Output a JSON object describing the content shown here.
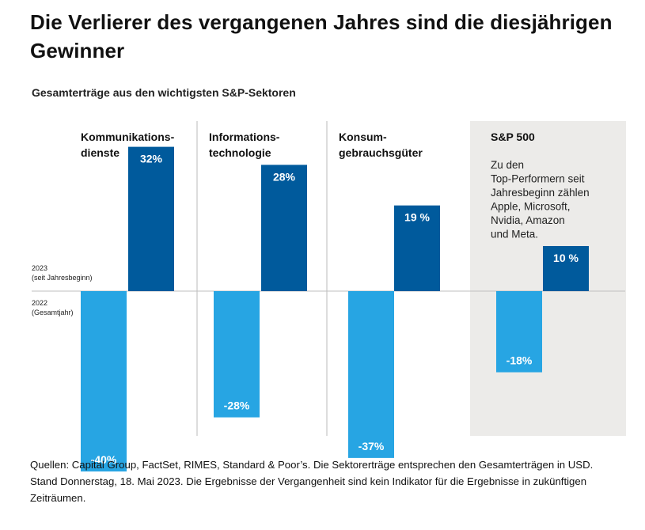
{
  "title": "Die Verlierer des vergangenen Jahres sind die diesjährigen Gewinner",
  "subtitle": "Gesamterträge aus den wichtigsten S&P-Sektoren",
  "footnote": "Quellen: Capital Group, FactSet, RIMES, Standard & Poor’s. Die Sektorerträge entsprechen den Gesamterträgen in USD. Stand Donnerstag, 18. Mai 2023. Die Ergebnisse der Vergangenheit sind kein Indikator für die Ergebnisse in zukünftigen Zeiträumen.",
  "colors": {
    "dark_blue": "#005A9C",
    "light_blue": "#27A5E3",
    "highlight_bg": "#ECEBE9",
    "divider": "#BBBBBB",
    "zero_line": "#BFBFBF"
  },
  "chart_data": {
    "type": "bar",
    "title": "Gesamterträge aus den wichtigsten S&P-Sektoren",
    "ylim": [
      -40,
      32
    ],
    "unit": "%",
    "groups": [
      {
        "name_lines": [
          "Kommunikations-",
          "dienste"
        ],
        "v2022": -40,
        "v2023": 32,
        "label2022": "-40%",
        "label2023": "32%"
      },
      {
        "name_lines": [
          "Informations-",
          "technologie"
        ],
        "v2022": -28,
        "v2023": 28,
        "label2022": "-28%",
        "label2023": "28%"
      },
      {
        "name_lines": [
          "Konsum-",
          "gebrauchsgüter"
        ],
        "v2022": -37,
        "v2023": 19,
        "label2022": "-37%",
        "label2023": "19 %"
      },
      {
        "name_lines": [
          "S&P 500"
        ],
        "v2022": -18,
        "v2023": 10,
        "label2022": "-18%",
        "label2023": "10 %",
        "highlight": true,
        "note_lines": [
          "Zu den",
          "Top-Performern seit",
          "Jahresbeginn zählen",
          "Apple, Microsoft,",
          "Nvidia, Amazon",
          "und Meta."
        ]
      }
    ],
    "series": [
      {
        "name": "2023 (seit Jahresbeginn)",
        "label_lines": [
          "2023",
          "(seit Jahresbeginn)"
        ],
        "values": [
          32,
          28,
          19,
          10
        ]
      },
      {
        "name": "2022 (Gesamtjahr)",
        "label_lines": [
          "2022",
          "(Gesamtjahr)"
        ],
        "values": [
          -40,
          -28,
          -37,
          -18
        ]
      }
    ]
  }
}
